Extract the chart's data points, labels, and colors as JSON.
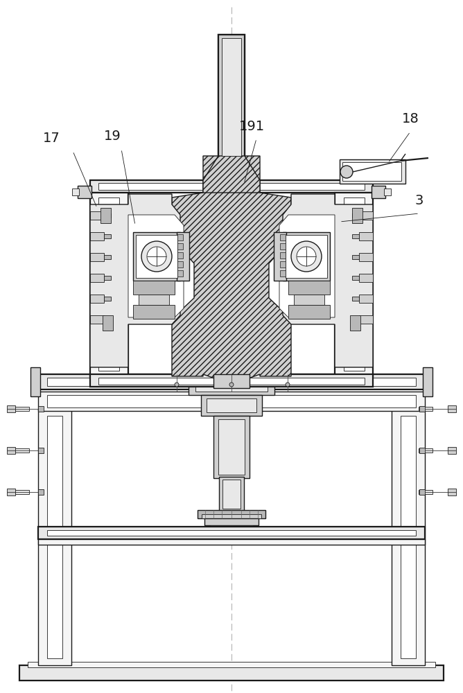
{
  "bg_color": "#ffffff",
  "lc": "#1a1a1a",
  "gray1": "#e8e8e8",
  "gray2": "#d0d0d0",
  "gray3": "#b8b8b8",
  "gray4": "#f5f5f5",
  "hatch_gray": "#c0c0c0",
  "center_line_color": "#999999",
  "label_fontsize": 14,
  "lw_thin": 0.6,
  "lw_med": 1.0,
  "lw_thick": 1.6,
  "label_17": "17",
  "label_19": "19",
  "label_191": "191",
  "label_18": "18",
  "label_3": "3"
}
